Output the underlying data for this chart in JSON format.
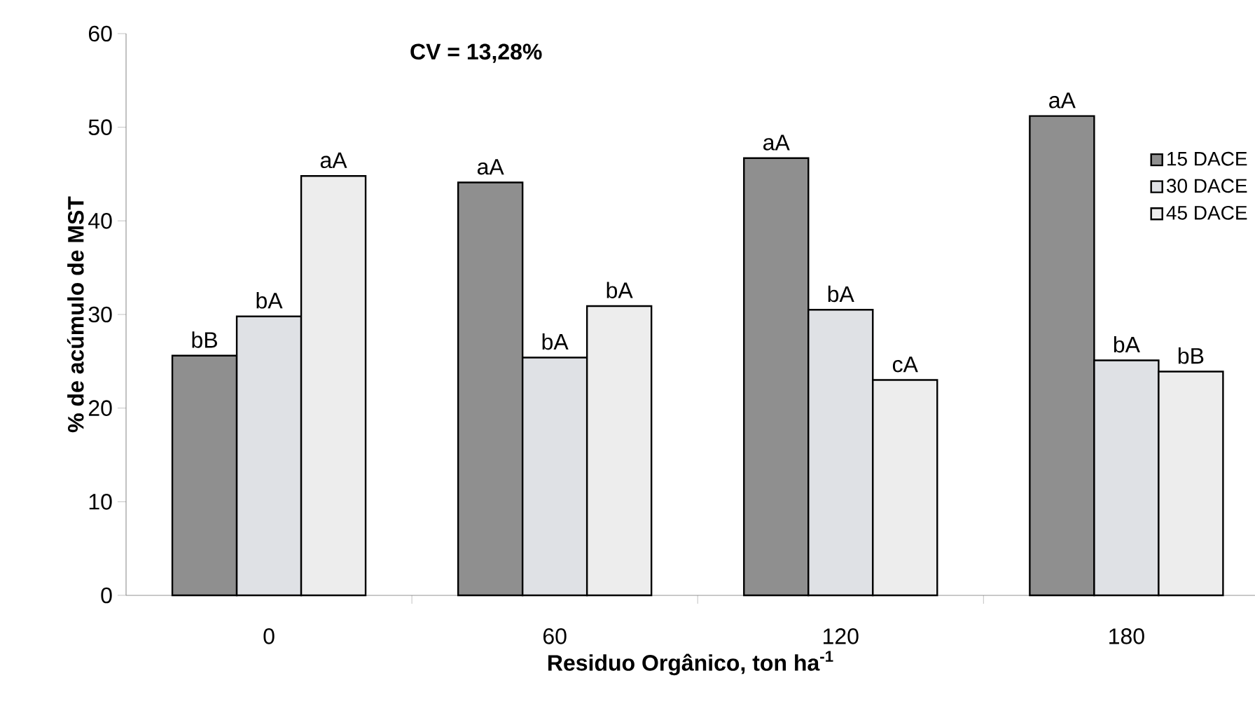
{
  "chart_data": {
    "type": "bar",
    "xlabel": "Residuo Orgânico, ton ha$^{-1}$",
    "ylabel": "% de acúmulo de MST",
    "annotations": [
      "CV = 13,28%"
    ],
    "categories": [
      "0",
      "60",
      "120",
      "180"
    ],
    "series": [
      {
        "name": "15 DACE",
        "color": "#8f8f8f",
        "values": [
          25.6,
          44.1,
          46.7,
          51.2
        ],
        "value_labels": [
          "bB",
          "aA",
          "aA",
          "aA"
        ]
      },
      {
        "name": "30 DACE",
        "color": "#dfe1e5",
        "values": [
          29.8,
          25.4,
          30.5,
          25.1
        ],
        "value_labels": [
          "bA",
          "bA",
          "bA",
          "bA"
        ]
      },
      {
        "name": "45 DACE",
        "color": "#ededed",
        "values": [
          44.8,
          30.9,
          23.0,
          23.9
        ],
        "value_labels": [
          "aA",
          "bA",
          "cA",
          "bB"
        ]
      }
    ],
    "ylim": [
      0,
      60
    ],
    "yticks": [
      0,
      10,
      20,
      30,
      40,
      50,
      60
    ],
    "grid": false,
    "legend": "top right"
  }
}
